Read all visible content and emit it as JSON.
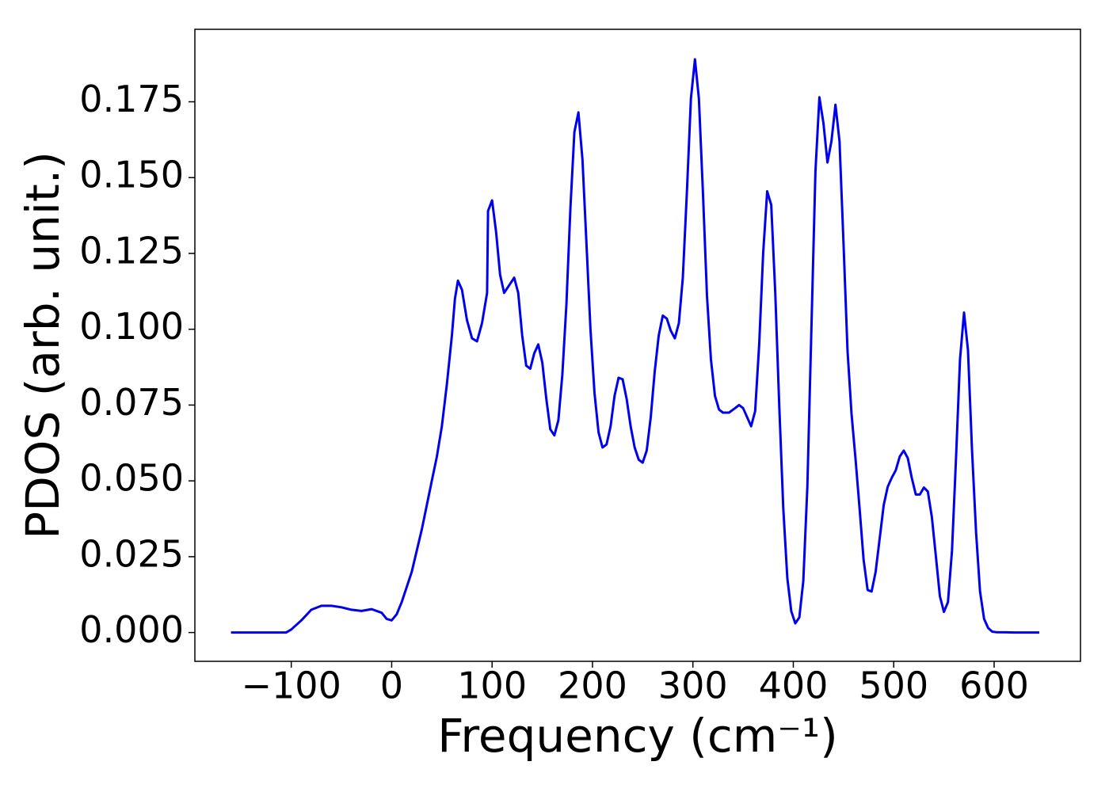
{
  "chart_data": {
    "type": "line",
    "xlabel": "Frequency (cm⁻¹)",
    "ylabel": "PDOS (arb. unit.)",
    "xlim": [
      -196,
      686
    ],
    "ylim": [
      -0.0095,
      0.1989
    ],
    "xticks": [
      {
        "value": -100,
        "label": "−100"
      },
      0,
      100,
      200,
      300,
      400,
      500,
      600
    ],
    "yticks": [
      {
        "value": 0,
        "label": "0.000"
      },
      {
        "value": 0.025,
        "label": "0.025"
      },
      {
        "value": 0.05,
        "label": "0.050"
      },
      {
        "value": 0.075,
        "label": "0.075"
      },
      {
        "value": 0.1,
        "label": "0.100"
      },
      {
        "value": 0.125,
        "label": "0.125"
      },
      {
        "value": 0.15,
        "label": "0.150"
      },
      {
        "value": 0.175,
        "label": "0.175"
      }
    ],
    "grid": false,
    "series": [
      {
        "color": "#0000ee",
        "x": [
          -160,
          -140,
          -120,
          -105,
          -100,
          -90,
          -80,
          -70,
          -60,
          -50,
          -40,
          -30,
          -20,
          -10,
          -5,
          0,
          5,
          10,
          20,
          30,
          40,
          45,
          50,
          55,
          60,
          63,
          66,
          70,
          75,
          80,
          85,
          90,
          95,
          96,
          100,
          104,
          108,
          112,
          120,
          122,
          126,
          130,
          134,
          138,
          142,
          146,
          150,
          154,
          158,
          162,
          166,
          170,
          174,
          178,
          182,
          186,
          190,
          194,
          198,
          202,
          206,
          210,
          214,
          218,
          222,
          226,
          230,
          234,
          238,
          242,
          246,
          250,
          254,
          258,
          262,
          266,
          270,
          274,
          278,
          282,
          286,
          290,
          294,
          298,
          302,
          306,
          310,
          314,
          318,
          322,
          326,
          330,
          336,
          342,
          346,
          350,
          354,
          358,
          362,
          366,
          370,
          374,
          378,
          382,
          386,
          390,
          394,
          398,
          402,
          406,
          410,
          414,
          418,
          422,
          426,
          430,
          434,
          438,
          442,
          446,
          450,
          454,
          458,
          462,
          466,
          470,
          474,
          478,
          482,
          486,
          490,
          494,
          498,
          502,
          506,
          510,
          514,
          518,
          522,
          526,
          530,
          534,
          538,
          542,
          546,
          550,
          554,
          558,
          562,
          566,
          570,
          574,
          578,
          582,
          586,
          590,
          594,
          598,
          602,
          620,
          645
        ],
        "values": [
          0,
          0,
          0,
          0,
          0.001,
          0.004,
          0.0075,
          0.0088,
          0.0088,
          0.0083,
          0.0075,
          0.0071,
          0.0077,
          0.0065,
          0.0045,
          0.004,
          0.006,
          0.01,
          0.02,
          0.034,
          0.05,
          0.058,
          0.068,
          0.082,
          0.098,
          0.11,
          0.116,
          0.113,
          0.103,
          0.097,
          0.096,
          0.102,
          0.112,
          0.139,
          0.1425,
          0.132,
          0.118,
          0.112,
          0.116,
          0.117,
          0.112,
          0.098,
          0.088,
          0.087,
          0.092,
          0.095,
          0.089,
          0.077,
          0.067,
          0.065,
          0.07,
          0.085,
          0.108,
          0.14,
          0.165,
          0.1715,
          0.156,
          0.128,
          0.1,
          0.079,
          0.066,
          0.061,
          0.062,
          0.068,
          0.078,
          0.084,
          0.0835,
          0.077,
          0.068,
          0.061,
          0.057,
          0.056,
          0.06,
          0.071,
          0.086,
          0.098,
          0.1045,
          0.1035,
          0.0995,
          0.097,
          0.102,
          0.117,
          0.145,
          0.176,
          0.189,
          0.176,
          0.145,
          0.111,
          0.09,
          0.078,
          0.0735,
          0.0725,
          0.0725,
          0.074,
          0.075,
          0.074,
          0.071,
          0.068,
          0.073,
          0.095,
          0.125,
          0.1455,
          0.141,
          0.112,
          0.075,
          0.041,
          0.018,
          0.007,
          0.003,
          0.005,
          0.017,
          0.048,
          0.1,
          0.152,
          0.1765,
          0.168,
          0.155,
          0.162,
          0.174,
          0.162,
          0.128,
          0.093,
          0.072,
          0.057,
          0.041,
          0.024,
          0.014,
          0.0135,
          0.02,
          0.031,
          0.042,
          0.048,
          0.051,
          0.0535,
          0.058,
          0.06,
          0.0575,
          0.051,
          0.0455,
          0.0455,
          0.0478,
          0.0465,
          0.038,
          0.025,
          0.012,
          0.0068,
          0.01,
          0.027,
          0.057,
          0.09,
          0.1055,
          0.093,
          0.06,
          0.033,
          0.0135,
          0.0045,
          0.0015,
          0.0003,
          0.0001,
          0,
          0
        ]
      }
    ]
  }
}
